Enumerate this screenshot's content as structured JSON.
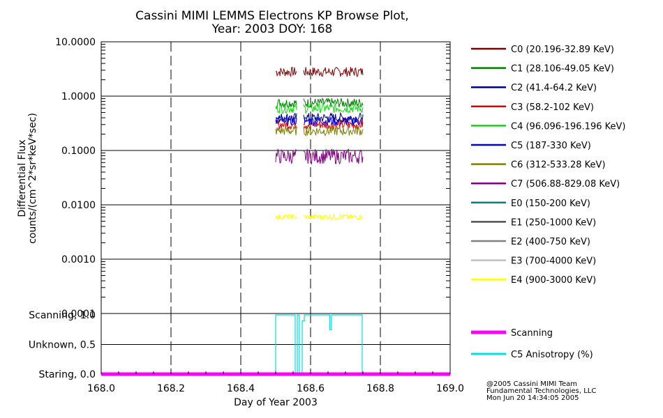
{
  "chart_data": {
    "type": "line",
    "title": "Cassini MIMI LEMMS Electrons KP Browse Plot,",
    "subtitle": "Year: 2003 DOY: 168",
    "xlabel": "Day of Year 2003",
    "xlim": [
      168.0,
      169.0
    ],
    "xticks": [
      "168.0",
      "168.2",
      "168.4",
      "168.6",
      "168.8",
      "169.0"
    ],
    "flux_panel": {
      "ylabel_line1": "Differential Flux",
      "ylabel_line2": "counts/(cm^2*sr*keV*sec)",
      "scale": "log",
      "ylim": [
        0.0001,
        10.0
      ],
      "yticks": [
        "10.0000",
        "1.0000",
        "0.1000",
        "0.0100",
        "0.0010",
        "0.0001"
      ],
      "series": [
        {
          "name": "C0 (20.196-32.89 KeV)",
          "color": "#800000",
          "x_range": [
            168.5,
            168.75
          ],
          "gap": [
            168.56,
            168.58
          ],
          "level": 2.8
        },
        {
          "name": "C1 (28.106-49.05 KeV)",
          "color": "#008000",
          "x_range": [
            168.5,
            168.75
          ],
          "gap": [
            168.56,
            168.58
          ],
          "level": 0.75
        },
        {
          "name": "C2 (41.4-64.2 KeV)",
          "color": "#000080",
          "x_range": [
            168.5,
            168.75
          ],
          "gap": [
            168.56,
            168.58
          ],
          "level": 0.4
        },
        {
          "name": "C3 (58.2-102 KeV)",
          "color": "#e00000",
          "x_range": [
            168.5,
            168.75
          ],
          "gap": [
            168.56,
            168.58
          ],
          "level": 0.3
        },
        {
          "name": "C4 (96.096-196.196 KeV)",
          "color": "#00e000",
          "x_range": [
            168.5,
            168.75
          ],
          "gap": [
            168.56,
            168.58
          ],
          "level": 0.6
        },
        {
          "name": "C5 (187-330 KeV)",
          "color": "#0000e0",
          "x_range": [
            168.5,
            168.75
          ],
          "gap": [
            168.56,
            168.58
          ],
          "level": 0.35
        },
        {
          "name": "C6 (312-533.28 KeV)",
          "color": "#808000",
          "x_range": [
            168.5,
            168.75
          ],
          "gap": [
            168.56,
            168.58
          ],
          "level": 0.23
        },
        {
          "name": "C7 (506.88-829.08 KeV)",
          "color": "#800080",
          "x_range": [
            168.5,
            168.75
          ],
          "gap": [
            168.56,
            168.58
          ],
          "level": 0.078
        },
        {
          "name": "E0 (150-200 KeV)",
          "color": "#008080",
          "x_range": null
        },
        {
          "name": "E1 (250-1000 KeV)",
          "color": "#505050",
          "x_range": null
        },
        {
          "name": "E2 (400-750 KeV)",
          "color": "#808080",
          "x_range": null
        },
        {
          "name": "E3 (700-4000 KeV)",
          "color": "#c0c0c0",
          "x_range": null
        },
        {
          "name": "E4 (900-3000 KeV)",
          "color": "#ffff00",
          "x_range": [
            168.5,
            168.75
          ],
          "gap": [
            168.56,
            168.58
          ],
          "level": 0.006
        }
      ]
    },
    "mode_panel": {
      "yticks": [
        "Scanning, 1.0",
        "Unknown, 0.5",
        "Staring, 0.0"
      ],
      "ylim": [
        0.0,
        1.0
      ],
      "series": [
        {
          "name": "Scanning",
          "color": "#ff00ff",
          "x": [
            168.0,
            169.0
          ],
          "y": [
            0.0,
            0.0
          ]
        },
        {
          "name": "C5 Anisotropy (%)",
          "color": "#00e0e0",
          "x": [
            168.0,
            168.5,
            168.5,
            168.556,
            168.556,
            168.562,
            168.562,
            168.568,
            168.568,
            168.576,
            168.576,
            168.582,
            168.582,
            168.655,
            168.655,
            168.66,
            168.66,
            168.748,
            168.748,
            169.0
          ],
          "y": [
            0.0,
            0.0,
            1.0,
            1.0,
            0.0,
            0.0,
            1.0,
            1.0,
            0.0,
            0.0,
            0.9,
            0.9,
            1.0,
            1.0,
            0.75,
            0.75,
            1.0,
            1.0,
            0.0,
            0.0
          ]
        }
      ]
    },
    "credit": [
      "@2005 Cassini MIMI Team",
      "Fundamental Technologies, LLC",
      "Mon Jun 20 14:34:05 2005"
    ]
  }
}
